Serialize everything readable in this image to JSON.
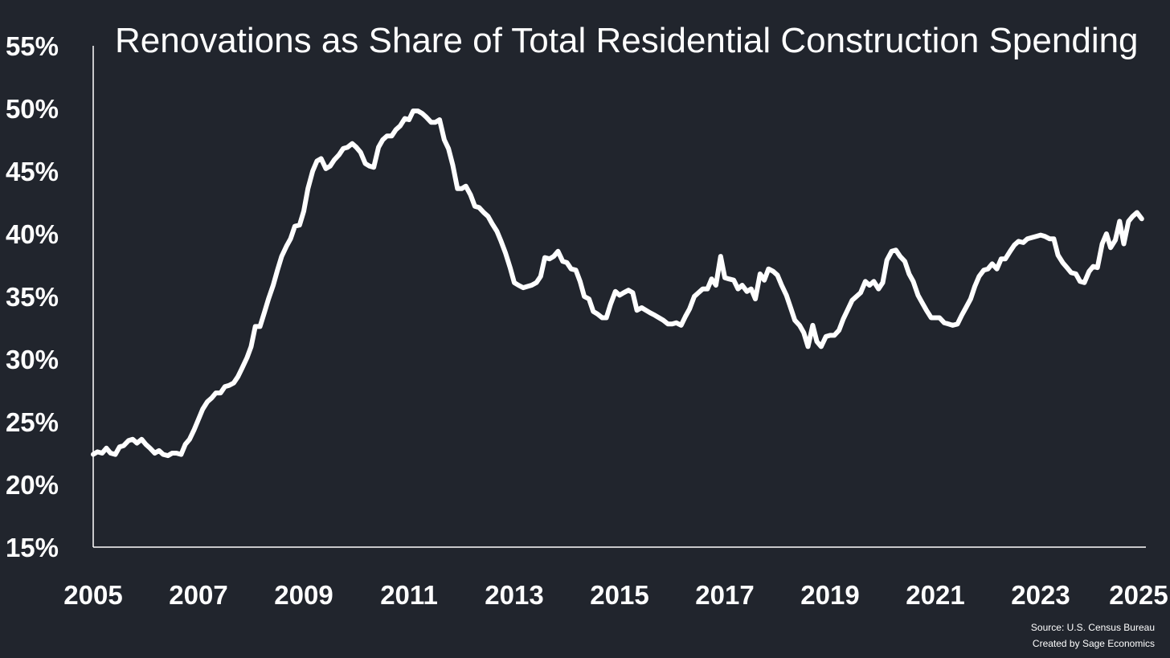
{
  "chart_data": {
    "type": "line",
    "title": "Renovations as Share of Total Residential Construction Spending",
    "xlabel": "",
    "ylabel": "",
    "xlim": [
      2005,
      2025
    ],
    "ylim": [
      15,
      55
    ],
    "grid": false,
    "x_ticks": [
      2005,
      2007,
      2009,
      2011,
      2013,
      2015,
      2017,
      2019,
      2021,
      2023,
      2025
    ],
    "x_tick_labels": [
      "2005",
      "2007",
      "2009",
      "2011",
      "2013",
      "2015",
      "2017",
      "2019",
      "2021",
      "2023",
      "2025"
    ],
    "y_ticks": [
      15,
      20,
      25,
      30,
      35,
      40,
      45,
      50,
      55
    ],
    "y_tick_labels": [
      "15%",
      "20%",
      "25%",
      "30%",
      "35%",
      "40%",
      "45%",
      "50%",
      "55%"
    ],
    "line_color": "#ffffff",
    "series": [
      {
        "x": [
          2005.0,
          2005.08,
          2005.17,
          2005.25,
          2005.33,
          2005.42,
          2005.5,
          2005.58,
          2005.67,
          2005.75,
          2005.83,
          2005.92,
          2006.0,
          2006.08,
          2006.17,
          2006.25,
          2006.33,
          2006.42,
          2006.5,
          2006.58,
          2006.67,
          2006.75,
          2006.83,
          2006.92,
          2007.0,
          2007.08,
          2007.17,
          2007.25,
          2007.33,
          2007.42,
          2007.5,
          2007.58,
          2007.67,
          2007.75,
          2007.83,
          2007.92,
          2008.0,
          2008.08,
          2008.17,
          2008.25,
          2008.33,
          2008.42,
          2008.5,
          2008.58,
          2008.67,
          2008.75,
          2008.83,
          2008.92,
          2009.0,
          2009.08,
          2009.17,
          2009.25,
          2009.33,
          2009.42,
          2009.5,
          2009.58,
          2009.67,
          2009.75,
          2009.83,
          2009.92,
          2010.0,
          2010.08,
          2010.17,
          2010.25,
          2010.33,
          2010.42,
          2010.5,
          2010.58,
          2010.67,
          2010.75,
          2010.83,
          2010.92,
          2011.0,
          2011.08,
          2011.17,
          2011.25,
          2011.33,
          2011.42,
          2011.5,
          2011.58,
          2011.67,
          2011.75,
          2011.83,
          2011.92,
          2012.0,
          2012.08,
          2012.17,
          2012.25,
          2012.33,
          2012.42,
          2012.5,
          2012.58,
          2012.67,
          2012.75,
          2012.83,
          2012.92,
          2013.0,
          2013.08,
          2013.17,
          2013.25,
          2013.33,
          2013.42,
          2013.5,
          2013.58,
          2013.67,
          2013.75,
          2013.83,
          2013.92,
          2014.0,
          2014.08,
          2014.17,
          2014.25,
          2014.33,
          2014.42,
          2014.5,
          2014.58,
          2014.67,
          2014.75,
          2014.83,
          2014.92,
          2015.0,
          2015.08,
          2015.17,
          2015.25,
          2015.33,
          2015.42,
          2015.5,
          2015.58,
          2015.67,
          2015.75,
          2015.83,
          2015.92,
          2016.0,
          2016.08,
          2016.17,
          2016.25,
          2016.33,
          2016.42,
          2016.5,
          2016.58,
          2016.67,
          2016.75,
          2016.83,
          2016.92,
          2017.0,
          2017.08,
          2017.17,
          2017.25,
          2017.33,
          2017.42,
          2017.5,
          2017.58,
          2017.67,
          2017.75,
          2017.83,
          2017.92,
          2018.0,
          2018.08,
          2018.17,
          2018.25,
          2018.33,
          2018.42,
          2018.5,
          2018.58,
          2018.67,
          2018.75,
          2018.83,
          2018.92,
          2019.0,
          2019.08,
          2019.17,
          2019.25,
          2019.33,
          2019.42,
          2019.5,
          2019.58,
          2019.67,
          2019.75,
          2019.83,
          2019.92,
          2020.0,
          2020.08,
          2020.17,
          2020.25,
          2020.33,
          2020.42,
          2020.5,
          2020.58,
          2020.67,
          2020.75,
          2020.83,
          2020.92,
          2021.0,
          2021.08,
          2021.17,
          2021.25,
          2021.33,
          2021.42,
          2021.5,
          2021.58,
          2021.67,
          2021.75,
          2021.83,
          2021.92,
          2022.0,
          2022.08,
          2022.17,
          2022.25,
          2022.33,
          2022.42,
          2022.5,
          2022.58,
          2022.67,
          2022.75,
          2022.83,
          2022.92,
          2023.0,
          2023.08,
          2023.17,
          2023.25,
          2023.33,
          2023.42,
          2023.5,
          2023.58,
          2023.67,
          2023.75,
          2023.83,
          2023.92,
          2024.0,
          2024.08,
          2024.17,
          2024.25,
          2024.33,
          2024.42,
          2024.5,
          2024.58,
          2024.67,
          2024.75,
          2024.83,
          2024.92
        ],
        "values": [
          22.4,
          22.6,
          22.5,
          22.9,
          22.5,
          22.4,
          23.0,
          23.1,
          23.5,
          23.6,
          23.3,
          23.6,
          23.2,
          22.9,
          22.5,
          22.7,
          22.4,
          22.3,
          22.5,
          22.5,
          22.4,
          23.2,
          23.6,
          24.4,
          25.2,
          26.0,
          26.6,
          26.9,
          27.3,
          27.3,
          27.8,
          27.9,
          28.1,
          28.6,
          29.3,
          30.1,
          31.0,
          32.6,
          32.6,
          33.7,
          34.8,
          35.9,
          37.1,
          38.2,
          39.0,
          39.6,
          40.6,
          40.7,
          41.8,
          43.6,
          45.0,
          45.8,
          46.0,
          45.2,
          45.4,
          45.9,
          46.3,
          46.8,
          46.9,
          47.2,
          46.9,
          46.5,
          45.6,
          45.4,
          45.3,
          46.9,
          47.5,
          47.8,
          47.8,
          48.3,
          48.6,
          49.2,
          49.1,
          49.8,
          49.8,
          49.6,
          49.3,
          48.9,
          48.9,
          49.1,
          47.5,
          46.8,
          45.5,
          43.6,
          43.6,
          43.8,
          43.1,
          42.2,
          42.1,
          41.7,
          41.4,
          40.8,
          40.2,
          39.4,
          38.5,
          37.3,
          36.1,
          35.9,
          35.7,
          35.8,
          35.9,
          36.1,
          36.6,
          38.1,
          38.0,
          38.2,
          38.6,
          37.8,
          37.7,
          37.2,
          37.1,
          36.2,
          35.0,
          34.8,
          33.8,
          33.6,
          33.3,
          33.3,
          34.4,
          35.4,
          35.1,
          35.3,
          35.5,
          35.3,
          33.9,
          34.1,
          33.9,
          33.7,
          33.5,
          33.3,
          33.1,
          32.8,
          32.8,
          32.9,
          32.7,
          33.4,
          34.0,
          35.0,
          35.3,
          35.6,
          35.6,
          36.4,
          35.9,
          38.2,
          36.5,
          36.4,
          36.3,
          35.6,
          35.9,
          35.4,
          35.6,
          34.8,
          36.8,
          36.3,
          37.2,
          37.0,
          36.7,
          35.9,
          35.1,
          34.1,
          33.1,
          32.7,
          32.1,
          31.0,
          32.7,
          31.4,
          31.0,
          31.8,
          31.9,
          31.9,
          32.3,
          33.2,
          33.9,
          34.7,
          35.0,
          35.3,
          36.2,
          35.9,
          36.2,
          35.6,
          36.1,
          37.9,
          38.6,
          38.7,
          38.2,
          37.8,
          36.8,
          36.2,
          35.1,
          34.5,
          33.9,
          33.3,
          33.3,
          33.3,
          32.9,
          32.8,
          32.7,
          32.8,
          33.5,
          34.1,
          34.8,
          35.8,
          36.6,
          37.1,
          37.2,
          37.6,
          37.2,
          38.0,
          38.0,
          38.6,
          39.1,
          39.4,
          39.3,
          39.6,
          39.7,
          39.8,
          39.9,
          39.8,
          39.6,
          39.6,
          38.3,
          37.7,
          37.3,
          36.9,
          36.8,
          36.2,
          36.1,
          37.0,
          37.4,
          37.3,
          39.2,
          40.0,
          38.9,
          39.5,
          41.0,
          39.2,
          41.0,
          41.4,
          41.7,
          41.2
        ]
      }
    ]
  },
  "source_line1": "Source: U.S. Census Bureau",
  "source_line2": "Created by Sage Economics"
}
